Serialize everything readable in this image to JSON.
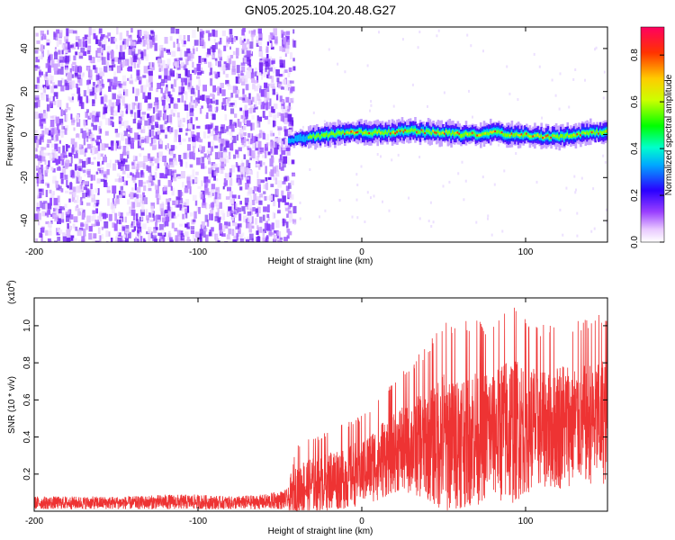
{
  "title": "GN05.2025.104.20.48.G27",
  "chart_data": [
    {
      "type": "heatmap",
      "panel": "spectrogram",
      "xlabel": "Height of straight line (km)",
      "ylabel": "Frequency (Hz)",
      "xlim": [
        -200,
        150
      ],
      "ylim": [
        -50,
        50
      ],
      "xticks": [
        -200,
        -100,
        0,
        100
      ],
      "yticks": [
        -40,
        -20,
        0,
        20,
        40
      ],
      "grid": false,
      "noise_region_x": [
        -200,
        -45
      ],
      "signal_track": {
        "x": [
          -45,
          -40,
          -30,
          -20,
          -10,
          0,
          10,
          20,
          30,
          40,
          50,
          60,
          70,
          80,
          90,
          100,
          110,
          120,
          130,
          140,
          150
        ],
        "y": [
          -3,
          -2,
          -1,
          0,
          1,
          1,
          1,
          1,
          2,
          1,
          1,
          0,
          0,
          1,
          0,
          0,
          -1,
          -1,
          0,
          1,
          1
        ]
      },
      "colorbar": {
        "label": "Normalized spectral amplitude",
        "ticks": [
          0.0,
          0.2,
          0.4,
          0.6,
          0.8
        ],
        "tick_labels": [
          "0.0",
          "0.2",
          "0.4",
          "0.6",
          "0.8"
        ],
        "range": [
          0,
          0.92
        ],
        "colormap": [
          "#ff0000",
          "#ffff00",
          "#00ff00",
          "#00ffff",
          "#0000ff",
          "#ff00ff"
        ]
      }
    },
    {
      "type": "line",
      "panel": "snr",
      "xlabel": "Height of straight line (km)",
      "ylabel": "SNR (10 * v/v)",
      "multiplier_label": "(x10",
      "multiplier_exp": "4",
      "multiplier_close": ")",
      "xlim": [
        -200,
        150
      ],
      "ylim": [
        0,
        1.15
      ],
      "xticks": [
        -200,
        -100,
        0,
        100
      ],
      "yticks": [
        0.2,
        0.4,
        0.6,
        0.8,
        1.0
      ],
      "ytick_labels": [
        "0.2",
        "0.4",
        "0.6",
        "0.8",
        "1.0"
      ],
      "color": "#ee3333",
      "series": [
        {
          "x": [
            -200,
            -180,
            -160,
            -140,
            -120,
            -100,
            -80,
            -60,
            -45,
            -40,
            -30,
            -20,
            -10,
            0,
            10,
            20,
            30,
            40,
            50,
            60,
            70,
            80,
            90,
            100,
            110,
            120,
            130,
            140,
            150
          ],
          "mean": [
            0.04,
            0.04,
            0.045,
            0.045,
            0.045,
            0.045,
            0.045,
            0.045,
            0.05,
            0.12,
            0.15,
            0.17,
            0.19,
            0.22,
            0.27,
            0.33,
            0.36,
            0.38,
            0.39,
            0.4,
            0.42,
            0.43,
            0.45,
            0.46,
            0.46,
            0.47,
            0.48,
            0.49,
            0.5
          ],
          "max": [
            0.08,
            0.08,
            0.08,
            0.08,
            0.09,
            0.09,
            0.08,
            0.09,
            0.12,
            0.36,
            0.4,
            0.44,
            0.48,
            0.52,
            0.62,
            0.7,
            0.8,
            0.9,
            1.05,
            1.02,
            1.05,
            1.0,
            1.15,
            1.05,
            1.0,
            1.05,
            1.02,
            1.05,
            1.08
          ]
        }
      ]
    }
  ]
}
